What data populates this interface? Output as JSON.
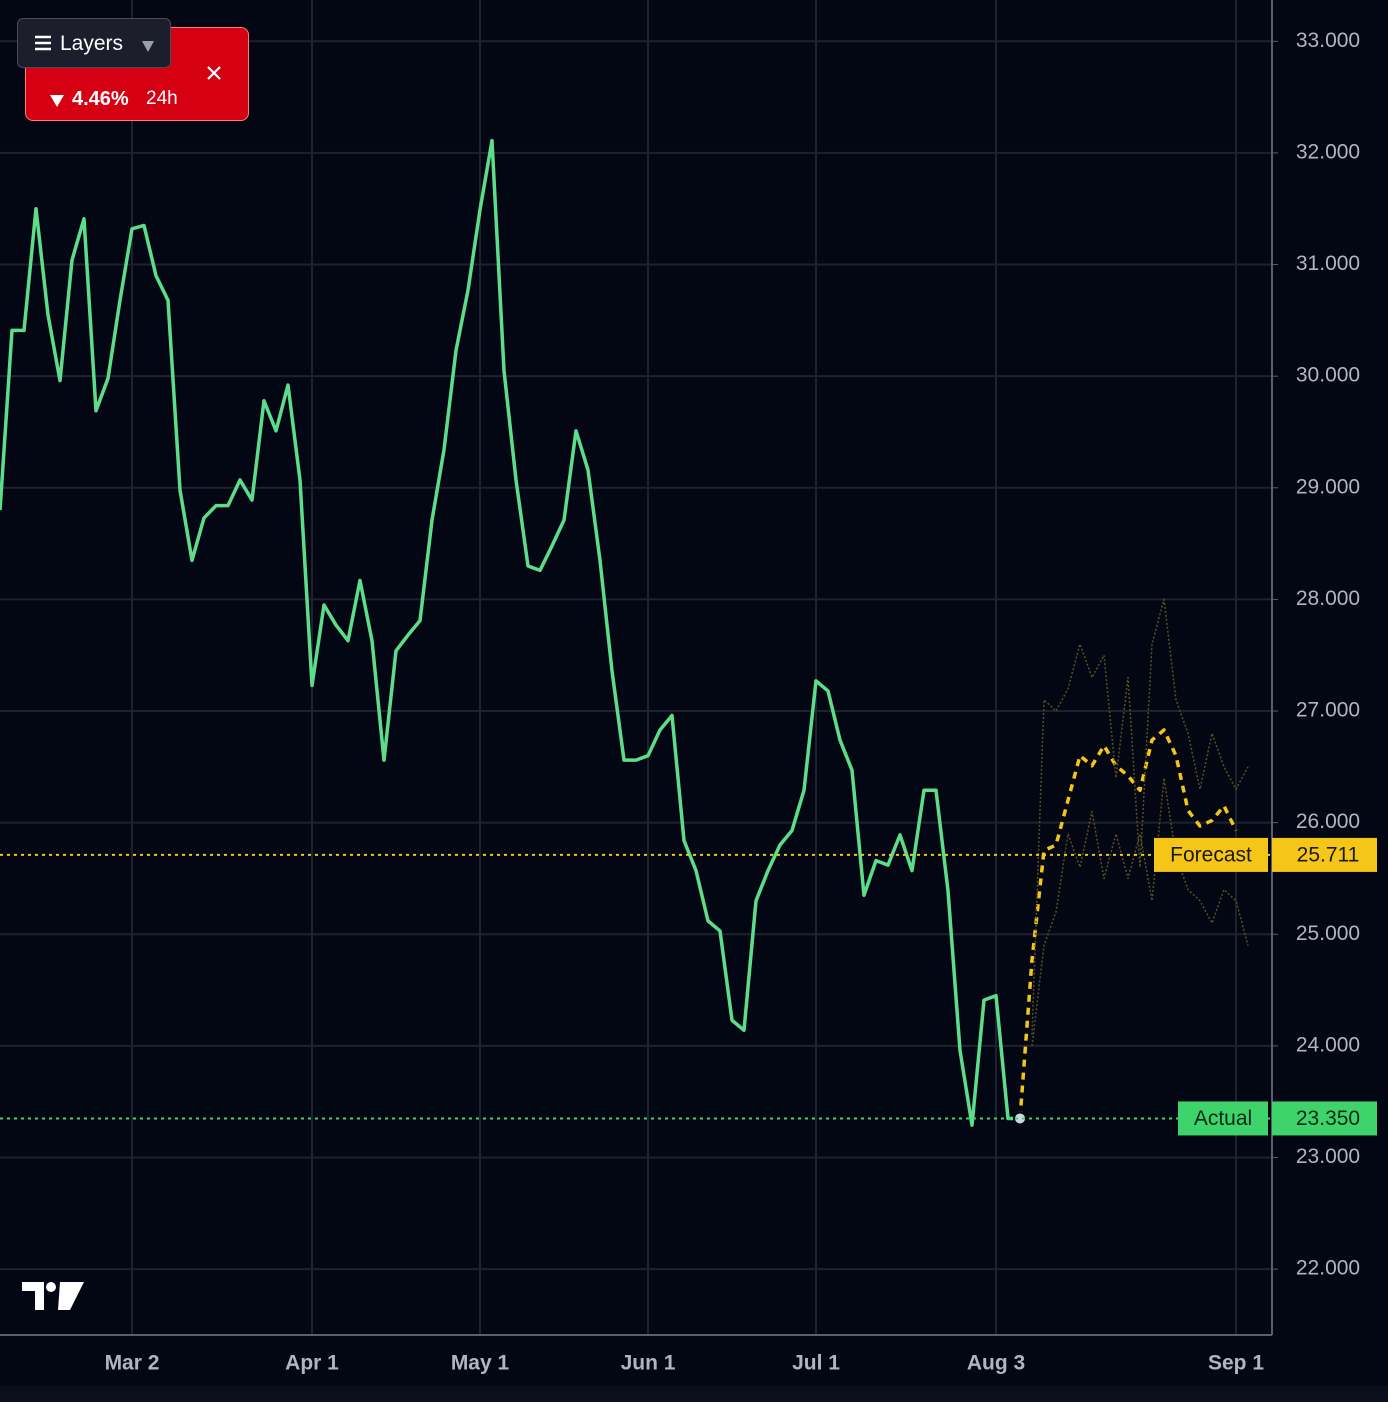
{
  "chart_data": {
    "type": "line",
    "categories": [
      null,
      null,
      null,
      null,
      null,
      null,
      null,
      null,
      null,
      null,
      null,
      "Mar 2",
      null,
      null,
      null,
      null,
      null,
      null,
      null,
      null,
      null,
      null,
      null,
      null,
      null,
      null,
      "Apr 1",
      null,
      null,
      null,
      null,
      null,
      null,
      null,
      null,
      null,
      null,
      null,
      null,
      null,
      "May 1",
      null,
      null,
      null,
      null,
      null,
      null,
      null,
      null,
      null,
      null,
      null,
      null,
      null,
      "Jun 1",
      null,
      null,
      null,
      null,
      null,
      null,
      null,
      null,
      null,
      null,
      null,
      null,
      null,
      "Jul 1",
      null,
      null,
      null,
      null,
      null,
      null,
      null,
      null,
      null,
      null,
      null,
      null,
      null,
      null,
      "Aug 3",
      null,
      null,
      null,
      null,
      null,
      null,
      null,
      null,
      null,
      null,
      null,
      null,
      null,
      null,
      null,
      null,
      null,
      null,
      null,
      "Sep 1",
      null
    ],
    "series": [
      {
        "name": "Actual",
        "color": "#5ddc8a",
        "values": [
          28.8,
          30.41,
          30.41,
          31.5,
          30.55,
          29.96,
          31.04,
          31.41,
          29.69,
          29.98,
          30.68,
          31.32,
          31.35,
          30.9,
          30.68,
          28.98,
          28.35,
          28.73,
          28.84,
          28.84,
          29.07,
          28.89,
          29.78,
          29.51,
          29.92,
          29.07,
          27.23,
          27.95,
          27.77,
          27.63,
          28.17,
          27.63,
          26.56,
          27.54,
          27.68,
          27.81,
          28.71,
          29.34,
          30.23,
          30.77,
          31.49,
          32.11,
          30.05,
          29.07,
          28.3,
          28.26,
          28.48,
          28.71,
          29.51,
          29.16,
          28.35,
          27.36,
          26.56,
          26.56,
          26.6,
          26.83,
          26.96,
          25.84,
          25.57,
          25.12,
          25.03,
          24.23,
          24.14,
          25.3,
          25.57,
          25.8,
          25.93,
          26.29,
          27.27,
          27.18,
          26.74,
          26.47,
          25.35,
          25.66,
          25.62,
          25.89,
          25.57,
          26.29,
          26.29,
          25.39,
          23.96,
          23.29,
          24.41,
          24.45,
          23.35,
          23.35,
          null,
          null,
          null,
          null,
          null,
          null,
          null,
          null,
          null,
          null,
          null,
          null,
          null,
          null,
          null,
          null,
          null,
          null,
          null
        ]
      },
      {
        "name": "Forecast",
        "color": "#f5c518",
        "dashed": true,
        "values": [
          null,
          null,
          null,
          null,
          null,
          null,
          null,
          null,
          null,
          null,
          null,
          null,
          null,
          null,
          null,
          null,
          null,
          null,
          null,
          null,
          null,
          null,
          null,
          null,
          null,
          null,
          null,
          null,
          null,
          null,
          null,
          null,
          null,
          null,
          null,
          null,
          null,
          null,
          null,
          null,
          null,
          null,
          null,
          null,
          null,
          null,
          null,
          null,
          null,
          null,
          null,
          null,
          null,
          null,
          null,
          null,
          null,
          null,
          null,
          null,
          null,
          null,
          null,
          null,
          null,
          null,
          null,
          null,
          null,
          null,
          null,
          null,
          null,
          null,
          null,
          null,
          null,
          null,
          null,
          null,
          null,
          null,
          null,
          null,
          null,
          23.35,
          24.77,
          25.75,
          25.8,
          26.2,
          26.6,
          26.51,
          26.69,
          26.51,
          26.42,
          26.29,
          26.74,
          26.83,
          26.6,
          26.11,
          25.97,
          26.02,
          26.15,
          25.93,
          null
        ]
      },
      {
        "color": "#5a5020",
        "faint": true,
        "values": [
          null,
          null,
          null,
          null,
          null,
          null,
          null,
          null,
          null,
          null,
          null,
          null,
          null,
          null,
          null,
          null,
          null,
          null,
          null,
          null,
          null,
          null,
          null,
          null,
          null,
          null,
          null,
          null,
          null,
          null,
          null,
          null,
          null,
          null,
          null,
          null,
          null,
          null,
          null,
          null,
          null,
          null,
          null,
          null,
          null,
          null,
          null,
          null,
          null,
          null,
          null,
          null,
          null,
          null,
          null,
          null,
          null,
          null,
          null,
          null,
          null,
          null,
          null,
          null,
          null,
          null,
          null,
          null,
          null,
          null,
          null,
          null,
          null,
          null,
          null,
          null,
          null,
          null,
          null,
          null,
          null,
          null,
          null,
          null,
          null,
          null,
          24.1,
          27.1,
          27.0,
          27.2,
          27.6,
          27.3,
          27.5,
          26.4,
          27.3,
          25.6,
          27.6,
          28.0,
          27.1,
          26.8,
          26.3,
          26.8,
          26.5,
          26.3,
          26.5
        ]
      },
      {
        "color": "#5a5020",
        "faint": true,
        "values": [
          null,
          null,
          null,
          null,
          null,
          null,
          null,
          null,
          null,
          null,
          null,
          null,
          null,
          null,
          null,
          null,
          null,
          null,
          null,
          null,
          null,
          null,
          null,
          null,
          null,
          null,
          null,
          null,
          null,
          null,
          null,
          null,
          null,
          null,
          null,
          null,
          null,
          null,
          null,
          null,
          null,
          null,
          null,
          null,
          null,
          null,
          null,
          null,
          null,
          null,
          null,
          null,
          null,
          null,
          null,
          null,
          null,
          null,
          null,
          null,
          null,
          null,
          null,
          null,
          null,
          null,
          null,
          null,
          null,
          null,
          null,
          null,
          null,
          null,
          null,
          null,
          null,
          null,
          null,
          null,
          null,
          null,
          null,
          null,
          null,
          null,
          24.0,
          24.9,
          25.2,
          25.9,
          25.6,
          26.1,
          25.5,
          25.9,
          25.5,
          25.9,
          25.3,
          26.4,
          25.7,
          25.4,
          25.3,
          25.1,
          25.4,
          25.3,
          24.9
        ]
      }
    ],
    "price_lines": [
      {
        "name": "Forecast",
        "value": 25.711,
        "color": "#f5c518",
        "text_color": "#1a1a1a"
      },
      {
        "name": "Actual",
        "value": 23.35,
        "label": "23.350",
        "color": "#3fd46b",
        "text_color": "#0b2a14"
      }
    ],
    "ylim": [
      21.41,
      33.37
    ],
    "yticks": [
      {
        "value": 22,
        "label": "22.000"
      },
      {
        "value": 23,
        "label": "23.000"
      },
      {
        "value": 24,
        "label": "24.000"
      },
      {
        "value": 25,
        "label": "25.000"
      },
      {
        "value": 26,
        "label": "26.000"
      },
      {
        "value": 27,
        "label": "27.000"
      },
      {
        "value": 28,
        "label": "28.000"
      },
      {
        "value": 29,
        "label": "29.000"
      },
      {
        "value": 30,
        "label": "30.000"
      },
      {
        "value": 31,
        "label": "31.000"
      },
      {
        "value": 32,
        "label": "32.000"
      },
      {
        "value": 33,
        "label": "33.000"
      }
    ],
    "grid": true
  },
  "overlay": {
    "layers": "Layers",
    "change": "4.46%",
    "period": "24h"
  }
}
